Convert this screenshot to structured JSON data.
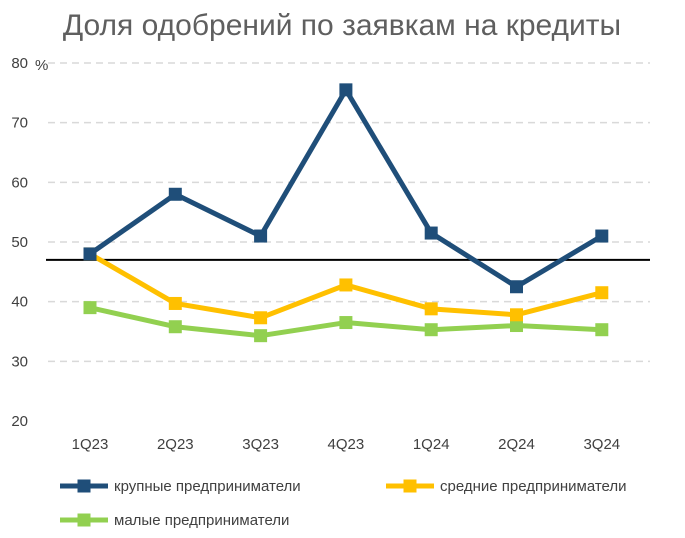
{
  "chart_data": {
    "type": "line",
    "title": "Доля одобрений по заявкам на кредиты",
    "y_unit": "%",
    "categories": [
      "1Q23",
      "2Q23",
      "3Q23",
      "4Q23",
      "1Q24",
      "2Q24",
      "3Q24"
    ],
    "ylim": [
      20,
      80
    ],
    "yticks": [
      20,
      30,
      40,
      50,
      60,
      70,
      80
    ],
    "grid": "horizontal dashed",
    "reference_line": 47,
    "legend_position": "bottom",
    "series": [
      {
        "name": "крупные предприниматели",
        "color": "#1f4e79",
        "values": [
          48,
          58,
          51,
          75.5,
          51.5,
          42.5,
          51
        ]
      },
      {
        "name": "средние предприниматели",
        "color": "#ffc000",
        "values": [
          48,
          39.7,
          37.3,
          42.8,
          38.8,
          37.8,
          41.5
        ]
      },
      {
        "name": "малые предприниматели",
        "color": "#92d050",
        "values": [
          39,
          35.8,
          34.3,
          36.5,
          35.3,
          36,
          35.3
        ]
      }
    ]
  }
}
